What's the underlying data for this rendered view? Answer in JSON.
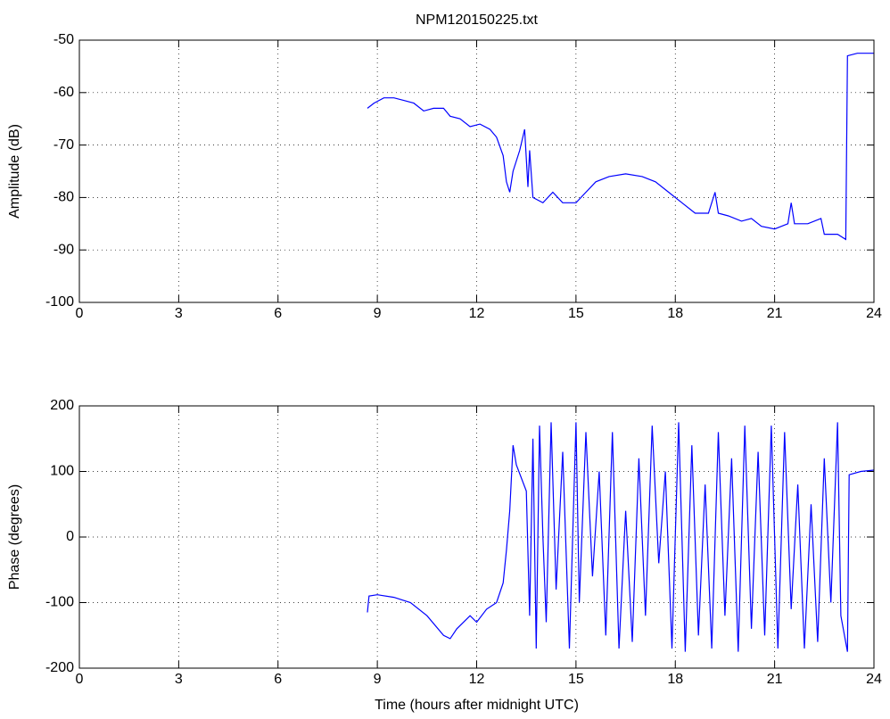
{
  "chart_data": [
    {
      "type": "line",
      "title": "NPM120150225.txt",
      "y_label": "Amplitude (dB)",
      "grid": true,
      "xlim": [
        0,
        24
      ],
      "xticks": [
        0,
        3,
        6,
        9,
        12,
        15,
        18,
        21,
        24
      ],
      "ylim": [
        -100,
        -50
      ],
      "yticks": [
        -100,
        -90,
        -80,
        -70,
        -60,
        -50
      ],
      "x": [
        8.7,
        8.9,
        9.2,
        9.5,
        9.8,
        10.1,
        10.4,
        10.7,
        11,
        11.2,
        11.5,
        11.8,
        12.1,
        12.4,
        12.6,
        12.8,
        12.9,
        13.0,
        13.1,
        13.3,
        13.45,
        13.55,
        13.6,
        13.7,
        14.0,
        14.3,
        14.6,
        15.0,
        15.3,
        15.6,
        16.0,
        16.5,
        17.0,
        17.4,
        17.8,
        18.2,
        18.6,
        19.0,
        19.2,
        19.3,
        19.6,
        20.0,
        20.3,
        20.6,
        21.0,
        21.4,
        21.5,
        21.6,
        22.0,
        22.4,
        22.5,
        22.9,
        23.15,
        23.2,
        23.5,
        24
      ],
      "series": [
        {
          "color": "#0000ff",
          "values": [
            -63,
            -62,
            -61,
            -61,
            -61.5,
            -62,
            -63.5,
            -63,
            -63,
            -64.5,
            -65,
            -66.5,
            -66,
            -67,
            -68.5,
            -72,
            -77,
            -79,
            -75,
            -71,
            -67,
            -78,
            -71,
            -80,
            -81,
            -79,
            -81,
            -81,
            -79,
            -77,
            -76,
            -75.5,
            -76,
            -77,
            -79,
            -81,
            -83,
            -83,
            -79,
            -83,
            -83.5,
            -84.5,
            -84,
            -85.5,
            -86,
            -85,
            -81,
            -85,
            -85,
            -84,
            -87,
            -87,
            -88,
            -53,
            -52.5,
            -52.5
          ]
        }
      ]
    },
    {
      "type": "line",
      "y_label": "Phase (degrees)",
      "x_label": "Time (hours after midnight UTC)",
      "grid": true,
      "xlim": [
        0,
        24
      ],
      "xticks": [
        0,
        3,
        6,
        9,
        12,
        15,
        18,
        21,
        24
      ],
      "ylim": [
        -200,
        200
      ],
      "yticks": [
        -200,
        -100,
        0,
        100,
        200
      ],
      "x": [
        8.7,
        8.75,
        9.0,
        9.5,
        10.0,
        10.5,
        11.0,
        11.2,
        11.4,
        11.8,
        12.0,
        12.3,
        12.6,
        12.8,
        12.9,
        13.0,
        13.1,
        13.2,
        13.5,
        13.6,
        13.7,
        13.8,
        13.9,
        14.0,
        14.1,
        14.25,
        14.4,
        14.6,
        14.8,
        15.0,
        15.1,
        15.3,
        15.5,
        15.7,
        15.9,
        16.1,
        16.3,
        16.5,
        16.7,
        16.9,
        17.1,
        17.3,
        17.5,
        17.7,
        17.9,
        18.1,
        18.3,
        18.5,
        18.7,
        18.9,
        19.1,
        19.3,
        19.5,
        19.7,
        19.9,
        20.1,
        20.3,
        20.5,
        20.7,
        20.9,
        21.1,
        21.3,
        21.5,
        21.7,
        21.9,
        22.1,
        22.3,
        22.5,
        22.7,
        22.9,
        23.0,
        23.2,
        23.25,
        23.6,
        24
      ],
      "series": [
        {
          "color": "#0000ff",
          "values": [
            -115,
            -90,
            -88,
            -92,
            -100,
            -120,
            -150,
            -155,
            -140,
            -120,
            -130,
            -110,
            -100,
            -70,
            -20,
            40,
            140,
            110,
            70,
            -120,
            150,
            -170,
            170,
            0,
            -130,
            175,
            -80,
            130,
            -170,
            175,
            -100,
            160,
            -60,
            100,
            -150,
            160,
            -170,
            40,
            -160,
            120,
            -120,
            170,
            -40,
            100,
            -170,
            175,
            -175,
            140,
            -150,
            80,
            -170,
            160,
            -120,
            120,
            -175,
            170,
            -140,
            130,
            -150,
            170,
            -170,
            160,
            -110,
            80,
            -170,
            50,
            -160,
            120,
            -100,
            175,
            -120,
            -175,
            95,
            100,
            102
          ]
        }
      ]
    }
  ]
}
